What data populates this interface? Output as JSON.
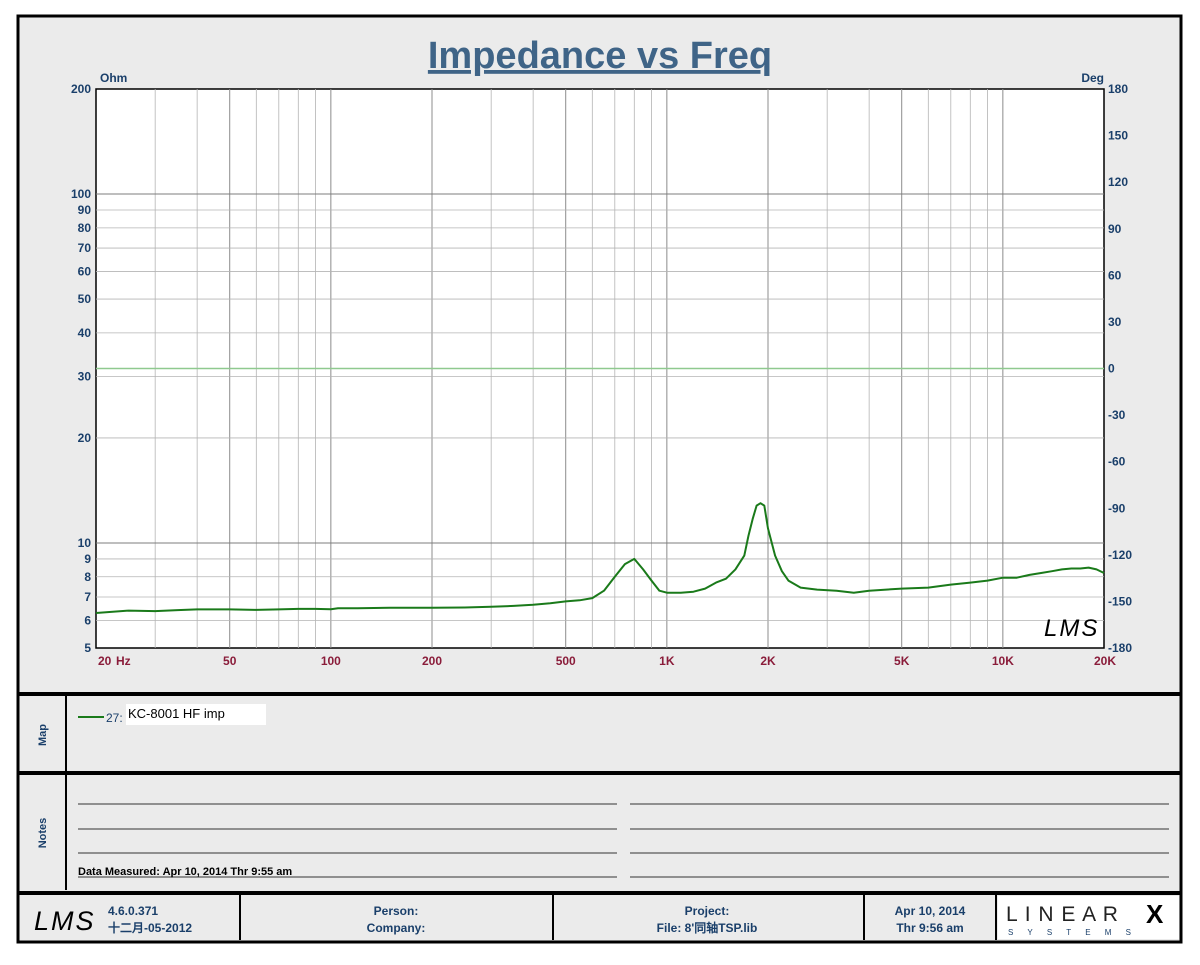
{
  "chart_data": {
    "type": "line",
    "title": "Impedance vs Freq",
    "xscale": "log",
    "xlim": [
      20,
      20000
    ],
    "ylim_left": [
      5,
      200
    ],
    "yscale_left": "log",
    "ylim_right": [
      -180,
      180
    ],
    "left_unit": "Ohm",
    "right_unit": "Deg",
    "x_tick_labels": [
      {
        "v": 20,
        "t": "20"
      },
      {
        "v": 50,
        "t": "50"
      },
      {
        "v": 100,
        "t": "100"
      },
      {
        "v": 200,
        "t": "200"
      },
      {
        "v": 500,
        "t": "500"
      },
      {
        "v": 1000,
        "t": "1K"
      },
      {
        "v": 2000,
        "t": "2K"
      },
      {
        "v": 5000,
        "t": "5K"
      },
      {
        "v": 10000,
        "t": "10K"
      },
      {
        "v": 20000,
        "t": "20K"
      }
    ],
    "x_unit_label": "Hz",
    "left_tick_labels": [
      5,
      6,
      7,
      8,
      9,
      10,
      20,
      30,
      40,
      50,
      60,
      70,
      80,
      90,
      100,
      200
    ],
    "right_tick_labels": [
      180,
      150,
      120,
      90,
      60,
      30,
      0,
      -30,
      -60,
      -90,
      -120,
      -150,
      -180
    ],
    "grid": true,
    "series": [
      {
        "name": "KC-8001 HF imp",
        "color": "#1a7a1a",
        "points": [
          [
            20,
            6.3
          ],
          [
            25,
            6.4
          ],
          [
            30,
            6.38
          ],
          [
            35,
            6.42
          ],
          [
            40,
            6.45
          ],
          [
            50,
            6.45
          ],
          [
            60,
            6.43
          ],
          [
            70,
            6.45
          ],
          [
            80,
            6.47
          ],
          [
            90,
            6.47
          ],
          [
            100,
            6.46
          ],
          [
            105,
            6.5
          ],
          [
            120,
            6.5
          ],
          [
            150,
            6.52
          ],
          [
            200,
            6.52
          ],
          [
            250,
            6.53
          ],
          [
            300,
            6.56
          ],
          [
            350,
            6.6
          ],
          [
            400,
            6.65
          ],
          [
            450,
            6.72
          ],
          [
            500,
            6.8
          ],
          [
            550,
            6.85
          ],
          [
            600,
            6.95
          ],
          [
            650,
            7.3
          ],
          [
            700,
            8.0
          ],
          [
            750,
            8.7
          ],
          [
            800,
            9.0
          ],
          [
            850,
            8.4
          ],
          [
            900,
            7.8
          ],
          [
            950,
            7.3
          ],
          [
            1000,
            7.2
          ],
          [
            1100,
            7.2
          ],
          [
            1200,
            7.25
          ],
          [
            1300,
            7.4
          ],
          [
            1400,
            7.7
          ],
          [
            1500,
            7.9
          ],
          [
            1600,
            8.4
          ],
          [
            1700,
            9.2
          ],
          [
            1750,
            10.5
          ],
          [
            1800,
            11.7
          ],
          [
            1850,
            12.8
          ],
          [
            1900,
            13.0
          ],
          [
            1950,
            12.8
          ],
          [
            2000,
            11.0
          ],
          [
            2100,
            9.2
          ],
          [
            2200,
            8.3
          ],
          [
            2300,
            7.8
          ],
          [
            2500,
            7.45
          ],
          [
            2800,
            7.35
          ],
          [
            3200,
            7.3
          ],
          [
            3600,
            7.2
          ],
          [
            4000,
            7.3
          ],
          [
            4500,
            7.35
          ],
          [
            5000,
            7.4
          ],
          [
            6000,
            7.45
          ],
          [
            7000,
            7.6
          ],
          [
            8000,
            7.7
          ],
          [
            9000,
            7.8
          ],
          [
            10000,
            7.95
          ],
          [
            11000,
            7.95
          ],
          [
            12000,
            8.1
          ],
          [
            13000,
            8.2
          ],
          [
            14000,
            8.3
          ],
          [
            15000,
            8.4
          ],
          [
            16000,
            8.45
          ],
          [
            17000,
            8.45
          ],
          [
            18000,
            8.5
          ],
          [
            19000,
            8.4
          ],
          [
            20000,
            8.2
          ]
        ]
      }
    ]
  },
  "legend": {
    "id": "27:",
    "name": "KC-8001 HF imp",
    "color": "#1a7a1a"
  },
  "map_label": "Map",
  "notes_label": "Notes",
  "notes_text": "Data Measured: Apr 10, 2014  Thr  9:55 am",
  "footer": {
    "version": "4.6.0.371",
    "version_date": "十二月-05-2012",
    "person_label": "Person:",
    "company_label": "Company:",
    "project_label": "Project:",
    "file_label": "File: 8'同轴TSP.lib",
    "date": "Apr 10, 2014",
    "time": "Thr  9:56 am",
    "brand_top": "L I N E A R",
    "brand_x": "X",
    "brand_bottom": "S  Y  S  T  E  M  S"
  },
  "logo_text": "LMS"
}
